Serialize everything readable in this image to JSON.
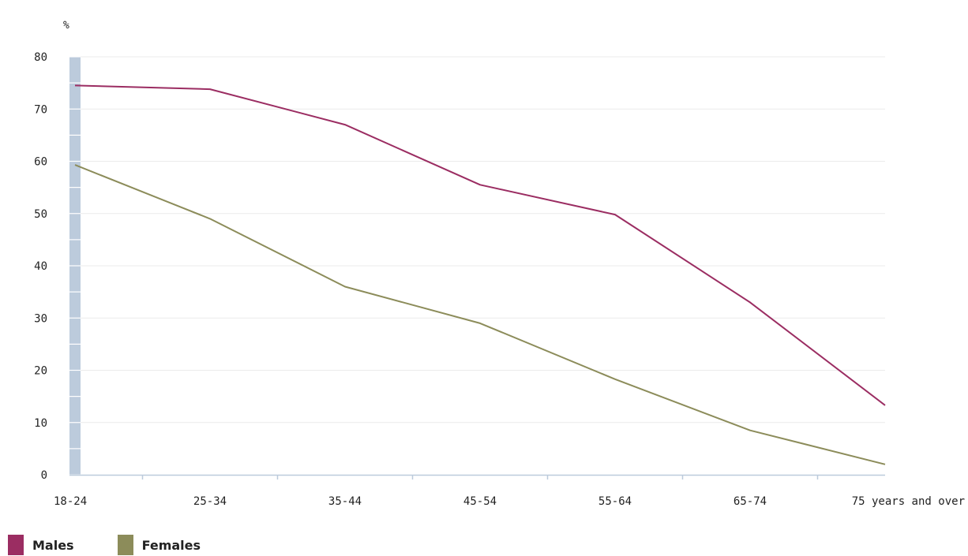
{
  "chart_data": {
    "type": "line",
    "unit_label": "%",
    "categories": [
      "18-24",
      "25-34",
      "35-44",
      "45-54",
      "55-64",
      "65-74",
      "75 years and over"
    ],
    "series": [
      {
        "name": "Males",
        "color": "#9b2d62",
        "values": [
          74.5,
          73.8,
          67.0,
          55.5,
          49.8,
          33.0,
          13.3
        ]
      },
      {
        "name": "Females",
        "color": "#8c8c5a",
        "values": [
          59.3,
          49.0,
          36.0,
          29.0,
          18.3,
          8.5,
          2.0
        ]
      }
    ],
    "yticks": [
      0,
      10,
      20,
      30,
      40,
      50,
      60,
      70,
      80
    ],
    "ylim": [
      0,
      80
    ],
    "grid": true,
    "legend": "bottom-left"
  }
}
